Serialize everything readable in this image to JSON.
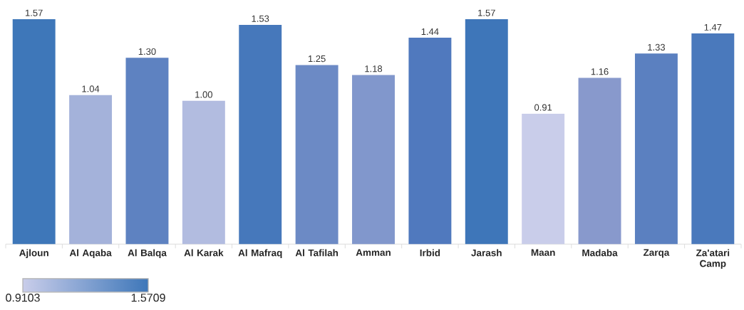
{
  "chart_data": {
    "type": "bar",
    "categories": [
      "Ajloun",
      "Al  Aqaba",
      "Al Balqa",
      "Al Karak",
      "Al Mafraq",
      "Al Tafilah",
      "Amman",
      "Irbid",
      "Jarash",
      "Maan",
      "Madaba",
      "Zarqa",
      "Za'atari Camp"
    ],
    "values": [
      1.57,
      1.04,
      1.3,
      1.0,
      1.53,
      1.25,
      1.18,
      1.44,
      1.57,
      0.91,
      1.16,
      1.33,
      1.47
    ],
    "value_labels": [
      "1.57",
      "1.04",
      "1.30",
      "1.00",
      "1.53",
      "1.25",
      "1.18",
      "1.44",
      "1.57",
      "0.91",
      "1.16",
      "1.33",
      "1.47"
    ],
    "colors": [
      "#3e77b9",
      "#a4b2da",
      "#5e82c1",
      "#b2bce0",
      "#4678bb",
      "#6c8ac5",
      "#8197cc",
      "#5079be",
      "#3e76b9",
      "#c9cdea",
      "#8899cc",
      "#5b80c0",
      "#4a79bc"
    ],
    "clim": [
      0.9103,
      1.5709
    ],
    "cticks": [
      0.9103,
      1.5709
    ]
  }
}
